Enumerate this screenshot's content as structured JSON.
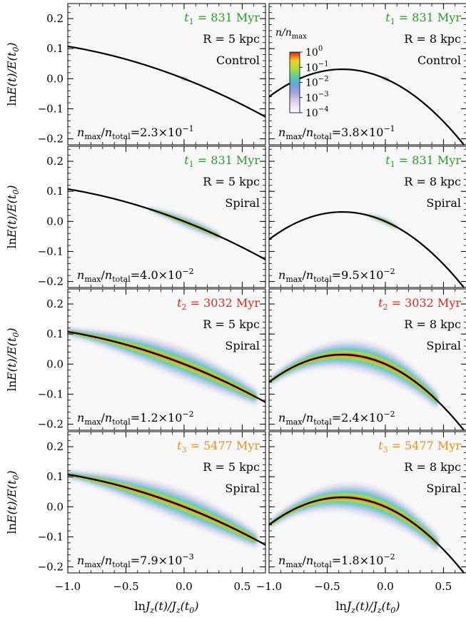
{
  "chart_data": {
    "type": "heatmap",
    "xlabel": "lnJ_z(t)/J_z(t_0)",
    "ylabel": "lnE(t)/E(t_0)",
    "xlim": [
      -1.0,
      0.7
    ],
    "ylim": [
      -0.22,
      0.25
    ],
    "xticks": [
      -1.0,
      -0.5,
      0.0,
      0.5
    ],
    "xtick_labels": [
      "−1.0",
      "−0.5",
      "0.0",
      "0.5"
    ],
    "yticks": [
      -0.2,
      -0.1,
      0.0,
      0.1,
      0.2
    ],
    "ytick_labels": [
      "−0.2",
      "−0.1",
      "0.0",
      "0.1",
      "0.2"
    ],
    "colorbar": {
      "title": "n/n_max",
      "tick_labels": [
        "10^0",
        "10^−1",
        "10^−2",
        "10^−3",
        "10^−4"
      ],
      "scale": "log",
      "range": [
        0.0001,
        1
      ]
    },
    "time_colors": {
      "t1": "#2a9a2a",
      "t2": "#d42b1b",
      "t3": "#e8930c"
    },
    "curve_5kpc": {
      "x0": 0.0,
      "a": -0.151,
      "b": -0.0434
    },
    "curve_8kpc": {
      "x0": 0.0,
      "a": -0.17,
      "b": -0.23
    },
    "panels": [
      {
        "row": 0,
        "col": 0,
        "time_sym": "t",
        "time_sub": "1",
        "time_text": " = 831 Myr",
        "time_color": "#2a9a2a",
        "radius": "R = 5 kpc",
        "model": "Control",
        "ratio_mantissa": "2.3",
        "ratio_exp": "−1",
        "spread": 0.02
      },
      {
        "row": 0,
        "col": 1,
        "time_sym": "t",
        "time_sub": "1",
        "time_text": " = 831 Myr",
        "time_color": "#2a9a2a",
        "radius": "R = 8 kpc",
        "model": "Control",
        "ratio_mantissa": "3.8",
        "ratio_exp": "−1",
        "spread": 0.02
      },
      {
        "row": 1,
        "col": 0,
        "time_sym": "t",
        "time_sub": "1",
        "time_text": " = 831 Myr",
        "time_color": "#2a9a2a",
        "radius": "R = 5 kpc",
        "model": "Spiral",
        "ratio_mantissa": "4.0",
        "ratio_exp": "−2",
        "spread": 0.3
      },
      {
        "row": 1,
        "col": 1,
        "time_sym": "t",
        "time_sub": "1",
        "time_text": " = 831 Myr",
        "time_color": "#2a9a2a",
        "radius": "R = 8 kpc",
        "model": "Spiral",
        "ratio_mantissa": "9.5",
        "ratio_exp": "−2",
        "spread": 0.1
      },
      {
        "row": 2,
        "col": 0,
        "time_sym": "t",
        "time_sub": "2",
        "time_text": " = 3032 Myr",
        "time_color": "#d42b1b",
        "radius": "R = 5 kpc",
        "model": "Spiral",
        "ratio_mantissa": "1.2",
        "ratio_exp": "−2",
        "spread": 1.0
      },
      {
        "row": 2,
        "col": 1,
        "time_sym": "t",
        "time_sub": "2",
        "time_text": " = 3032 Myr",
        "time_color": "#d42b1b",
        "radius": "R = 8 kpc",
        "model": "Spiral",
        "ratio_mantissa": "2.4",
        "ratio_exp": "−2",
        "spread": 1.0
      },
      {
        "row": 3,
        "col": 0,
        "time_sym": "t",
        "time_sub": "3",
        "time_text": " = 5477 Myr",
        "time_color": "#e8930c",
        "radius": "R = 5 kpc",
        "model": "Spiral",
        "ratio_mantissa": "7.9",
        "ratio_exp": "−3",
        "spread": 1.0
      },
      {
        "row": 3,
        "col": 1,
        "time_sym": "t",
        "time_sub": "3",
        "time_text": " = 5477 Myr",
        "time_color": "#e8930c",
        "radius": "R = 8 kpc",
        "model": "Spiral",
        "ratio_mantissa": "1.8",
        "ratio_exp": "−2",
        "spread": 1.0
      }
    ]
  }
}
